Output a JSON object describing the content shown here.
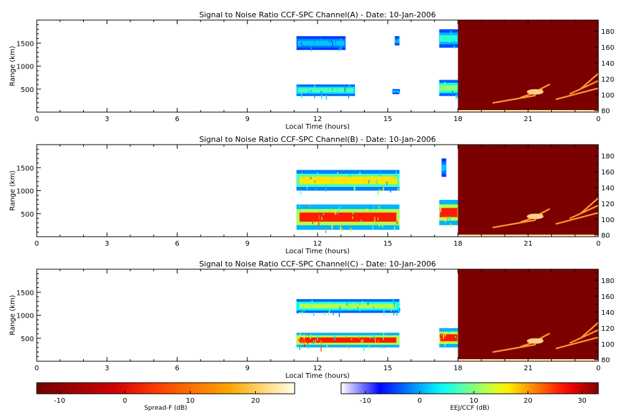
{
  "chart_data": [
    {
      "type": "heatmap",
      "title": "Signal to Noise Ratio CCF-SPC Channel(A) - Date: 10-Jan-2006",
      "xlabel": "Local Time (hours)",
      "ylabel": "Range (km)",
      "xlim": [
        0,
        24
      ],
      "ylim": [
        0,
        2000
      ],
      "y2lim": [
        78,
        194
      ],
      "xticks": [
        "0",
        "3",
        "6",
        "9",
        "12",
        "15",
        "18",
        "21",
        "0"
      ],
      "yticks": [
        "500",
        "1000",
        "1500"
      ],
      "y2ticks": [
        "80",
        "100",
        "120",
        "140",
        "160",
        "180"
      ],
      "spread_f_region": [
        18,
        24
      ],
      "echo_regions": [
        {
          "kind": "lower",
          "t0": 11.1,
          "t1": 13.6,
          "r0": 350,
          "r1": 600,
          "core": "cyan-green"
        },
        {
          "kind": "upper",
          "t0": 11.1,
          "t1": 13.2,
          "r0": 1350,
          "r1": 1650,
          "core": "blue"
        },
        {
          "kind": "lower",
          "t0": 17.2,
          "t1": 18,
          "r0": 350,
          "r1": 700,
          "core": "green"
        },
        {
          "kind": "upper",
          "t0": 17.2,
          "t1": 18,
          "r0": 1400,
          "r1": 1800,
          "core": "cyan"
        },
        {
          "kind": "lower",
          "t0": 15.2,
          "t1": 15.5,
          "r0": 390,
          "r1": 500,
          "core": "blue"
        },
        {
          "kind": "upper",
          "t0": 15.3,
          "t1": 15.5,
          "r0": 1450,
          "r1": 1650,
          "core": "blue"
        }
      ]
    },
    {
      "type": "heatmap",
      "title": "Signal to Noise Ratio CCF-SPC Channel(B) - Date: 10-Jan-2006",
      "xlabel": "Local Time (hours)",
      "ylabel": "Range (km)",
      "xlim": [
        0,
        24
      ],
      "ylim": [
        0,
        2000
      ],
      "y2lim": [
        78,
        194
      ],
      "xticks": [
        "0",
        "3",
        "6",
        "9",
        "12",
        "15",
        "18",
        "21",
        "0"
      ],
      "yticks": [
        "500",
        "1000",
        "1500"
      ],
      "y2ticks": [
        "80",
        "100",
        "120",
        "140",
        "160",
        "180"
      ],
      "spread_f_region": [
        18,
        24
      ],
      "echo_regions": [
        {
          "kind": "lower",
          "t0": 11.1,
          "t1": 15.5,
          "r0": 150,
          "r1": 700,
          "core": "red"
        },
        {
          "kind": "upper",
          "t0": 11.1,
          "t1": 15.5,
          "r0": 1000,
          "r1": 1450,
          "core": "yellow-red"
        },
        {
          "kind": "lower",
          "t0": 17.2,
          "t1": 18,
          "r0": 250,
          "r1": 800,
          "core": "red"
        },
        {
          "kind": "upper",
          "t0": 17.3,
          "t1": 17.5,
          "r0": 1300,
          "r1": 1700,
          "core": "blue"
        }
      ]
    },
    {
      "type": "heatmap",
      "title": "Signal to Noise Ratio CCF-SPC Channel(C) - Date: 10-Jan-2006",
      "xlabel": "Local Time (hours)",
      "ylabel": "Range (km)",
      "xlim": [
        0,
        24
      ],
      "ylim": [
        0,
        2000
      ],
      "y2lim": [
        78,
        194
      ],
      "xticks": [
        "0",
        "3",
        "6",
        "9",
        "12",
        "15",
        "18",
        "21",
        "0"
      ],
      "yticks": [
        "500",
        "1000",
        "1500"
      ],
      "y2ticks": [
        "80",
        "100",
        "120",
        "140",
        "160",
        "180"
      ],
      "spread_f_region": [
        18,
        24
      ],
      "echo_regions": [
        {
          "kind": "lower",
          "t0": 11.1,
          "t1": 15.5,
          "r0": 300,
          "r1": 620,
          "core": "red"
        },
        {
          "kind": "upper",
          "t0": 11.1,
          "t1": 15.5,
          "r0": 1050,
          "r1": 1350,
          "core": "green-yellow"
        },
        {
          "kind": "lower",
          "t0": 17.2,
          "t1": 18,
          "r0": 300,
          "r1": 720,
          "core": "red"
        }
      ]
    }
  ],
  "colorbars": [
    {
      "label": "Spread-F (dB)",
      "ticks": [
        "-10",
        "0",
        "10",
        "20"
      ],
      "range": [
        -13.5,
        26
      ],
      "scheme": "hot"
    },
    {
      "label": "EEJ/CCF (dB)",
      "ticks": [
        "-10",
        "0",
        "10",
        "20",
        "30"
      ],
      "range": [
        -14.5,
        33
      ],
      "scheme": "jet"
    }
  ],
  "colors": {
    "spread_f_background": "#7b0000",
    "jet_low": "#ffffff",
    "jet_high": "#ff0000"
  }
}
